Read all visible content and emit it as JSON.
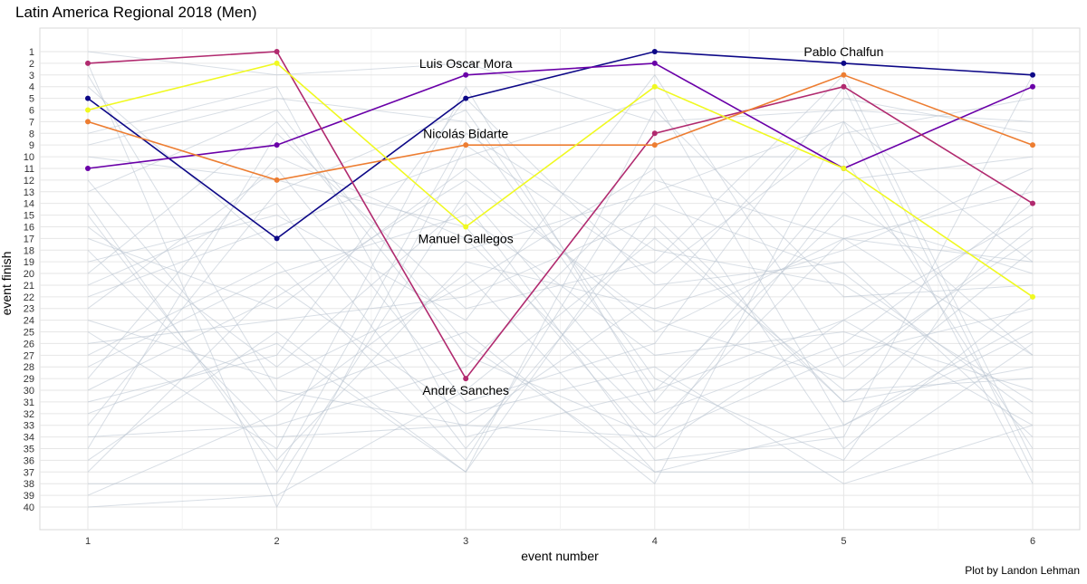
{
  "chart_data": {
    "type": "line",
    "title": "Latin America Regional 2018 (Men)",
    "xlabel": "event number",
    "ylabel": "event finish",
    "caption": "Plot by Landon Lehman",
    "x": [
      1,
      2,
      3,
      4,
      5,
      6
    ],
    "xlim": [
      1,
      6
    ],
    "ylim": [
      1,
      40
    ],
    "y_reversed": true,
    "grid": true,
    "legend": "none",
    "y_ticks": [
      "1",
      "2",
      "3",
      "4",
      "5",
      "6",
      "7",
      "8",
      "9",
      "10",
      "11",
      "12",
      "13",
      "14",
      "15",
      "16",
      "17",
      "18",
      "19",
      "20",
      "21",
      "22",
      "23",
      "24",
      "25",
      "26",
      "27",
      "28",
      "29",
      "30",
      "31",
      "32",
      "33",
      "34",
      "35",
      "36",
      "37",
      "38",
      "39",
      "40"
    ],
    "background_series": [
      [
        3,
        30,
        33,
        34,
        13,
        27
      ],
      [
        4,
        18,
        18,
        13,
        7,
        38
      ],
      [
        8,
        4,
        34,
        30,
        24,
        15
      ],
      [
        10,
        12,
        16,
        35,
        24,
        33
      ],
      [
        12,
        31,
        25,
        38,
        7,
        19
      ],
      [
        13,
        6,
        26,
        37,
        33,
        24
      ],
      [
        14,
        37,
        8,
        18,
        21,
        31
      ],
      [
        15,
        36,
        19,
        23,
        18,
        11
      ],
      [
        16,
        28,
        14,
        36,
        34,
        3
      ],
      [
        17,
        23,
        11,
        25,
        17,
        27
      ],
      [
        18,
        34,
        33,
        22,
        5,
        8
      ],
      [
        19,
        15,
        24,
        3,
        28,
        17
      ],
      [
        20,
        7,
        27,
        34,
        27,
        23
      ],
      [
        21,
        14,
        35,
        16,
        31,
        18
      ],
      [
        22,
        16,
        10,
        5,
        33,
        25
      ],
      [
        23,
        11,
        31,
        26,
        4,
        37
      ],
      [
        24,
        29,
        21,
        11,
        35,
        22
      ],
      [
        25,
        35,
        4,
        31,
        12,
        10
      ],
      [
        26,
        24,
        22,
        15,
        31,
        28
      ],
      [
        27,
        19,
        36,
        10,
        10,
        35
      ],
      [
        28,
        20,
        15,
        27,
        25,
        30
      ],
      [
        29,
        10,
        17,
        33,
        17,
        13
      ],
      [
        30,
        22,
        12,
        24,
        29,
        16
      ],
      [
        31,
        27,
        5,
        21,
        19,
        34
      ],
      [
        32,
        26,
        37,
        14,
        20,
        32
      ],
      [
        33,
        13,
        6,
        29,
        36,
        12
      ],
      [
        34,
        33,
        28,
        12,
        17,
        19
      ],
      [
        35,
        8,
        23,
        19,
        3,
        36
      ],
      [
        36,
        25,
        37,
        6,
        22,
        21
      ],
      [
        37,
        21,
        32,
        28,
        38,
        33
      ],
      [
        38,
        38,
        13,
        32,
        26,
        14
      ],
      [
        39,
        32,
        20,
        37,
        37,
        26
      ],
      [
        40,
        39,
        30,
        17,
        30,
        29
      ],
      [
        9,
        5,
        7,
        30,
        15,
        20
      ],
      [
        1,
        3,
        2,
        7,
        6,
        7
      ],
      [
        2,
        40,
        9,
        20,
        8,
        5
      ]
    ],
    "series": [
      {
        "name": "Pablo Chalfun",
        "color": "#0d0887",
        "values": [
          5,
          17,
          5,
          1,
          2,
          3
        ]
      },
      {
        "name": "Luis Oscar Mora",
        "color": "#6a00a8",
        "values": [
          11,
          9,
          3,
          2,
          11,
          4
        ]
      },
      {
        "name": "André Sanches",
        "color": "#b12a6f",
        "values": [
          2,
          1,
          29,
          8,
          4,
          14
        ]
      },
      {
        "name": "Nicolás Bidarte",
        "color": "#ed7d31",
        "values": [
          7,
          12,
          9,
          9,
          3,
          9
        ]
      },
      {
        "name": "Manuel Gallegos",
        "color": "#f0f921",
        "values": [
          6,
          2,
          16,
          4,
          11,
          22
        ]
      }
    ],
    "annotations": [
      {
        "text": "Luis Oscar Mora",
        "x": 3,
        "y": 2
      },
      {
        "text": "Nicolás Bidarte",
        "x": 3,
        "y": 8
      },
      {
        "text": "Manuel Gallegos",
        "x": 3,
        "y": 17
      },
      {
        "text": "André Sanches",
        "x": 3,
        "y": 30
      },
      {
        "text": "Pablo Chalfun",
        "x": 5,
        "y": 1
      }
    ],
    "colors": {
      "background_line": "#b8c2cf",
      "grid_major": "#e6e6e6",
      "grid_minor": "#f3f3f3",
      "panel_border": "#d9d9d9"
    }
  }
}
